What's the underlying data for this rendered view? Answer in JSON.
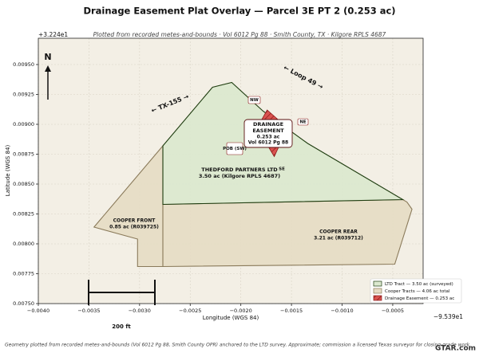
{
  "chart_data": {
    "type": "map",
    "title": "Drainage Easement Plat Overlay — Parcel 3E PT 2 (0.253 ac)",
    "subtitle": "Plotted from recorded metes-and-bounds · Vol 6012 Pg 88 · Smith County, TX · Kilgore RPLS 4687",
    "x_label": "Longitude (WGS 84)",
    "y_label": "Latitude (WGS 84)",
    "x_offset": "−9.539e1",
    "y_offset": "+3.224e1",
    "xlim": [
      -0.004,
      -0.0002
    ],
    "ylim": [
      0.0075,
      0.00972
    ],
    "xticks": [
      {
        "value": -0.004,
        "label": "−0.0040"
      },
      {
        "value": -0.0035,
        "label": "−0.0035"
      },
      {
        "value": -0.003,
        "label": "−0.0030"
      },
      {
        "value": -0.0025,
        "label": "−0.0025"
      },
      {
        "value": -0.002,
        "label": "−0.0020"
      },
      {
        "value": -0.0015,
        "label": "−0.0015"
      },
      {
        "value": -0.001,
        "label": "−0.0010"
      },
      {
        "value": -0.0005,
        "label": "−0.0005"
      }
    ],
    "yticks": [
      {
        "value": 0.0075,
        "label": "0.00750"
      },
      {
        "value": 0.00775,
        "label": "0.00775"
      },
      {
        "value": 0.008,
        "label": "0.00800"
      },
      {
        "value": 0.00825,
        "label": "0.00825"
      },
      {
        "value": 0.0085,
        "label": "0.00850"
      },
      {
        "value": 0.00875,
        "label": "0.00875"
      },
      {
        "value": 0.009,
        "label": "0.00900"
      },
      {
        "value": 0.00925,
        "label": "0.00925"
      },
      {
        "value": 0.0095,
        "label": "0.00950"
      }
    ],
    "grid": true,
    "legend": "lower right",
    "series": [
      {
        "name": "Cooper Tracts — 4.06 ac total",
        "color": "#e6dcc5",
        "edge": "#8a7a5a",
        "x": [
          -0.00345,
          -0.00277,
          -0.00277,
          -0.00302,
          -0.00302
        ],
        "y": [
          0.00814,
          0.00882,
          0.00781,
          0.00781,
          0.00804
        ]
      },
      {
        "name": "Cooper Tracts — 4.06 ac total",
        "color": "#e6dcc5",
        "edge": "#8a7a5a",
        "x": [
          -0.00277,
          -0.0004,
          -0.00036,
          -0.00031,
          -0.00048,
          -0.00277
        ],
        "y": [
          0.00833,
          0.00837,
          0.00835,
          0.00829,
          0.00783,
          0.00781
        ]
      },
      {
        "name": "LTD Tract — 3.50 ac (surveyed)",
        "color": "#dbe8cf",
        "edge": "#1f3d10",
        "x": [
          -0.00277,
          -0.00228,
          -0.00209,
          -0.00178,
          -0.00134,
          -0.0004,
          -0.00277
        ],
        "y": [
          0.00882,
          0.00931,
          0.00935,
          0.00911,
          0.00884,
          0.00837,
          0.00833
        ]
      },
      {
        "name": "Drainage Easement — 0.253 ac",
        "color": "#d9534f",
        "edge": "#8b1a1a",
        "x": [
          -0.00174,
          -0.00154,
          -0.00167,
          -0.00184
        ],
        "y": [
          0.00912,
          0.00897,
          0.00873,
          0.00897
        ]
      }
    ],
    "north": "N",
    "roads": [
      "← TX-155 →",
      "← Loop 49 →"
    ],
    "corners": [
      "NW",
      "NE",
      "POB (SW)",
      "SE"
    ],
    "callout": [
      "DRAINAGE",
      "EASEMENT",
      "0.253 ac",
      "Vol 6012 Pg 88"
    ],
    "tract_labels": [
      [
        "THEDFORD PARTNERS LTD",
        "3.50 ac (Kilgore RPLS 4687)"
      ],
      [
        "COOPER FRONT",
        "0.85 ac (R039725)"
      ],
      [
        "COOPER REAR",
        "3.21 ac (R039712)"
      ]
    ],
    "scale_bar": "200 ft",
    "footer": "Geometry plotted from recorded metes-and-bounds (Vol 6012 Pg 88, Smith County OPR) anchored to the LTD survey. Approximate; commission a licensed Texas surveyor for closing-grade work.",
    "watermark": "GTAR.com"
  }
}
